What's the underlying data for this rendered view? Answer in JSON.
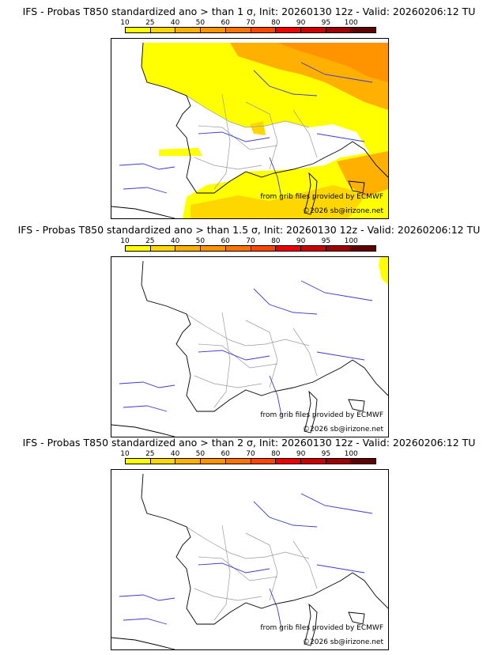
{
  "legend": {
    "ticks": [
      "10",
      "25",
      "40",
      "50",
      "60",
      "70",
      "80",
      "90",
      "95",
      "100"
    ],
    "colors": [
      "#ffff00",
      "#ffd700",
      "#ffb000",
      "#ff9300",
      "#ff7400",
      "#ff4500",
      "#ee0000",
      "#cc0000",
      "#a00000",
      "#600000"
    ]
  },
  "panels": [
    {
      "title": "IFS - Probas T850  standardized ano > than 1 σ, Init: 20260130 12z - Valid: 20260206:12 TU",
      "credit_source": "from grib files provided by ECMWF",
      "credit_copyright": "©2026 sb@irizone.net"
    },
    {
      "title": "IFS - Probas T850  standardized ano > than 1.5 σ, Init: 20260130 12z - Valid: 20260206:12 TU",
      "credit_source": "from grib files provided by ECMWF",
      "credit_copyright": "©2026 sb@irizone.net"
    },
    {
      "title": "IFS - Probas T850  standardized ano > than 2 σ, Init: 20260130 12z - Valid: 20260206:12 TU",
      "credit_source": "from grib files provided by ECMWF",
      "credit_copyright": "©2026 sb@irizone.net"
    }
  ],
  "colors": {
    "coast": "#000000",
    "rivers": "#3a3acc",
    "borders": "#9a9a9a"
  }
}
